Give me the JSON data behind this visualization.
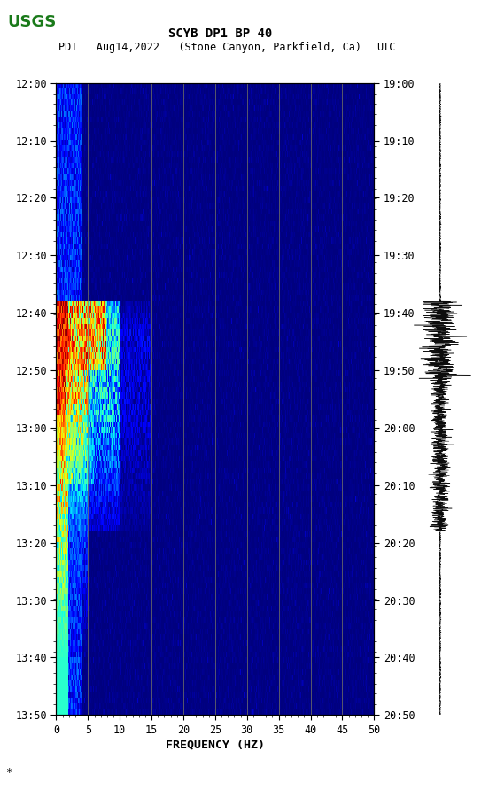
{
  "title_line1": "SCYB DP1 BP 40",
  "title_line2_left": "PDT   Aug14,2022   (Stone Canyon, Parkfield, Ca)",
  "title_line2_right": "UTC",
  "xlabel": "FREQUENCY (HZ)",
  "freq_min": 0,
  "freq_max": 50,
  "freq_ticks": [
    0,
    5,
    10,
    15,
    20,
    25,
    30,
    35,
    40,
    45,
    50
  ],
  "freq_tick_labels": [
    "0",
    "5",
    "10",
    "15",
    "20",
    "25",
    "30",
    "35",
    "40",
    "45",
    "50"
  ],
  "time_ticks_left": [
    "12:00",
    "12:10",
    "12:20",
    "12:30",
    "12:40",
    "12:50",
    "13:00",
    "13:10",
    "13:20",
    "13:30",
    "13:40",
    "13:50"
  ],
  "time_ticks_right": [
    "19:00",
    "19:10",
    "19:20",
    "19:30",
    "19:40",
    "19:50",
    "20:00",
    "20:10",
    "20:20",
    "20:30",
    "20:40",
    "20:50"
  ],
  "n_time": 110,
  "n_freq": 500,
  "grid_color": "#808060",
  "vertical_grid_freqs": [
    5,
    10,
    15,
    20,
    25,
    30,
    35,
    40,
    45
  ],
  "waveform_noise_base": 0.03,
  "waveform_event_amp": 0.3,
  "waveform_peak_amp": 0.5
}
